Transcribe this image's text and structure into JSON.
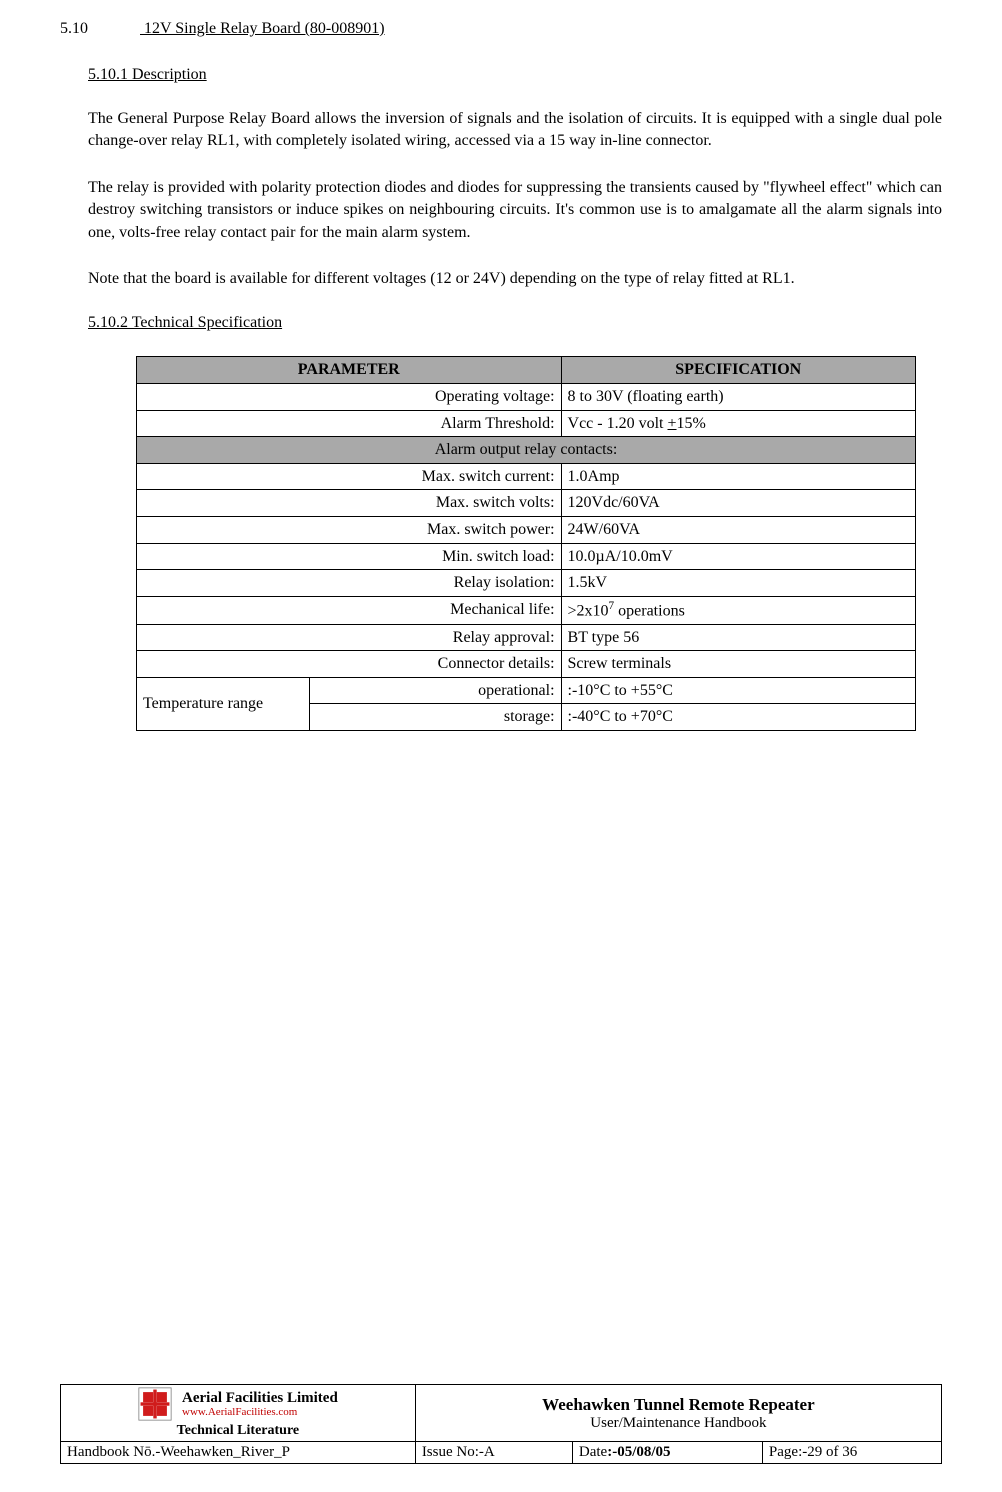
{
  "section": {
    "number": "5.10",
    "title": "12V Single Relay Board (80-008901)"
  },
  "description": {
    "heading": "5.10.1  Description",
    "para1": "The General Purpose Relay Board allows the inversion of signals and the isolation of circuits. It is equipped with a single dual pole change-over relay RL1, with completely isolated wiring, accessed via a 15 way in-line connector.",
    "para2": "The relay is provided with polarity protection diodes and diodes for suppressing the transients caused by \"flywheel effect\" which can destroy switching transistors or induce spikes on neighbouring circuits. It's common use is to amalgamate all the alarm signals into one, volts-free relay contact pair for the main alarm system.",
    "para3": "Note that the board is available for different voltages (12 or 24V) depending on the type of relay fitted at RL1."
  },
  "techspec": {
    "heading": "5.10.2  Technical Specification",
    "header_param": "PARAMETER",
    "header_spec": "SPECIFICATION",
    "rows": [
      {
        "param": "Operating voltage:",
        "value": "8 to 30V (floating earth)"
      },
      {
        "param": "Alarm Threshold:",
        "value_html": "Vcc - 1.20 volt <u>+</u>15%"
      }
    ],
    "sub_header": "Alarm output relay contacts:",
    "rows2": [
      {
        "param": "Max. switch current:",
        "value": "1.0Amp"
      },
      {
        "param": "Max. switch volts:",
        "value": "120Vdc/60VA"
      },
      {
        "param": "Max. switch power:",
        "value": "24W/60VA"
      },
      {
        "param": "Min. switch load:",
        "value": "10.0µA/10.0mV"
      },
      {
        "param": "Relay isolation:",
        "value": "1.5kV"
      },
      {
        "param": "Mechanical life:",
        "value_html": "&gt;2x10<sup>7</sup> operations"
      },
      {
        "param": "Relay approval:",
        "value": "BT type 56"
      },
      {
        "param": "Connector details:",
        "value": "Screw terminals"
      }
    ],
    "temp_label": "Temperature range",
    "temp_rows": [
      {
        "param": "operational:",
        "value": ":-10°C to +55°C"
      },
      {
        "param": "storage:",
        "value": ":-40°C to +70°C"
      }
    ]
  },
  "footer": {
    "afl_name": "Aerial  Facilities  Limited",
    "afl_url": "www.AerialFacilities.com",
    "afl_tl": "Technical Literature",
    "doc_title": "Weehawken Tunnel Remote Repeater",
    "doc_sub": "User/Maintenance Handbook",
    "handbook_label": "Handbook Nō.-Weehawken_River_P",
    "issue_label": "Issue No:-A",
    "date_label": "Date",
    "date_value": ":-05/08/05",
    "page_label": "Page",
    "page_value": ":-29 of 36",
    "logo_colors": {
      "red": "#d01c1c",
      "white": "#ffffff",
      "border": "#888"
    }
  }
}
